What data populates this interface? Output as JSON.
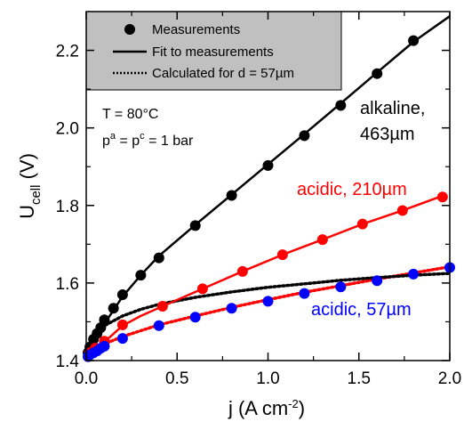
{
  "chart_data": {
    "type": "line",
    "xlabel": "j (A cm-2)",
    "xlabel_parts": {
      "main": "j (A cm",
      "sup": "-2",
      "end": ")"
    },
    "ylabel": "Ucell (V)",
    "ylabel_parts": {
      "main": "U",
      "sub": "cell",
      "end": " (V)"
    },
    "xlim": [
      0,
      2.0
    ],
    "ylim": [
      1.4,
      2.3
    ],
    "x_ticks": [
      0.0,
      0.5,
      1.0,
      1.5,
      2.0
    ],
    "x_tick_labels": [
      "0.0",
      "0.5",
      "1.0",
      "1.5",
      "2.0"
    ],
    "y_ticks": [
      1.4,
      1.6,
      1.8,
      2.0,
      2.2
    ],
    "y_tick_labels": [
      "1.4",
      "1.6",
      "1.8",
      "2.0",
      "2.2"
    ],
    "legend": {
      "position": "top-left",
      "entries": [
        "Measurements",
        "Fit to measurements",
        "Calculated for d = 57µm"
      ]
    },
    "conditions": {
      "temperature": "T = 80°C",
      "pressure_parts": {
        "p1": "p",
        "s1": "a",
        "eq": " = p",
        "s2": "c",
        "end": " = 1 bar"
      }
    },
    "series": [
      {
        "name": "alkaline, 463µm",
        "label_lines": [
          "alkaline,",
          "463µm"
        ],
        "color": "#000000",
        "kind": "measurements",
        "x": [
          0.01,
          0.02,
          0.04,
          0.06,
          0.08,
          0.1,
          0.15,
          0.2,
          0.3,
          0.4,
          0.6,
          0.8,
          1.0,
          1.2,
          1.4,
          1.6,
          1.8
        ],
        "y": [
          1.42,
          1.435,
          1.455,
          1.47,
          1.485,
          1.505,
          1.535,
          1.57,
          1.62,
          1.665,
          1.748,
          1.826,
          1.903,
          1.98,
          2.058,
          2.14,
          2.225
        ]
      },
      {
        "name": "alkaline fit",
        "color": "#000000",
        "kind": "fit",
        "x": [
          0.0,
          0.01,
          0.03,
          0.06,
          0.1,
          0.15,
          0.2,
          0.3,
          0.4,
          0.6,
          0.8,
          1.0,
          1.2,
          1.4,
          1.6,
          1.8,
          2.0
        ],
        "y": [
          1.405,
          1.42,
          1.44,
          1.465,
          1.495,
          1.53,
          1.565,
          1.62,
          1.67,
          1.75,
          1.828,
          1.906,
          1.984,
          2.063,
          2.143,
          2.222,
          2.288
        ]
      },
      {
        "name": "acidic, 210µm",
        "color": "#ff0000",
        "kind": "measurements",
        "x": [
          0.02,
          0.05,
          0.1,
          0.2,
          0.42,
          0.64,
          0.86,
          1.08,
          1.3,
          1.52,
          1.74,
          1.96
        ],
        "y": [
          1.42,
          1.432,
          1.45,
          1.492,
          1.54,
          1.585,
          1.63,
          1.673,
          1.712,
          1.752,
          1.787,
          1.822
        ]
      },
      {
        "name": "acidic 210 fit",
        "color": "#ff0000",
        "kind": "fit",
        "x": [
          0.0,
          0.02,
          0.05,
          0.1,
          0.2,
          0.3,
          0.42,
          0.64,
          0.86,
          1.08,
          1.3,
          1.52,
          1.74,
          1.96
        ],
        "y": [
          1.405,
          1.418,
          1.43,
          1.448,
          1.49,
          1.515,
          1.54,
          1.585,
          1.63,
          1.673,
          1.712,
          1.752,
          1.787,
          1.825
        ]
      },
      {
        "name": "acidic, 57µm",
        "color": "#0000ff",
        "kind": "measurements",
        "x": [
          0.01,
          0.02,
          0.04,
          0.06,
          0.08,
          0.1,
          0.2,
          0.4,
          0.6,
          0.8,
          1.0,
          1.2,
          1.4,
          1.6,
          1.8,
          2.0
        ],
        "y": [
          1.41,
          1.415,
          1.42,
          1.425,
          1.432,
          1.437,
          1.457,
          1.49,
          1.512,
          1.535,
          1.553,
          1.573,
          1.59,
          1.606,
          1.623,
          1.64
        ]
      },
      {
        "name": "acidic 57 calc",
        "color": "#ff0000",
        "kind": "calculated",
        "x": [
          0.0,
          0.05,
          0.1,
          0.2,
          0.4,
          0.6,
          0.8,
          1.0,
          1.2,
          1.4,
          1.6,
          1.8,
          2.0
        ],
        "y": [
          1.405,
          1.43,
          1.443,
          1.462,
          1.492,
          1.515,
          1.537,
          1.557,
          1.576,
          1.593,
          1.61,
          1.626,
          1.642
        ]
      },
      {
        "name": "alkaline calc",
        "color": "#000000",
        "kind": "calculated",
        "x": [
          0.0,
          0.02,
          0.05,
          0.1,
          0.2,
          0.3,
          0.4,
          0.6,
          0.8,
          1.0,
          1.2,
          1.4,
          1.6,
          1.8,
          2.0
        ],
        "y": [
          1.405,
          1.44,
          1.465,
          1.49,
          1.515,
          1.532,
          1.545,
          1.563,
          1.577,
          1.589,
          1.598,
          1.607,
          1.614,
          1.62,
          1.625
        ]
      }
    ],
    "annotations": {
      "alkaline": {
        "lines": [
          "alkaline,",
          "463µm"
        ],
        "color": "#000000"
      },
      "acidic210": {
        "text": "acidic, 210µm",
        "color": "#ff0000"
      },
      "acidic57": {
        "text": "acidic, 57µm",
        "color": "#0000ff"
      }
    }
  }
}
